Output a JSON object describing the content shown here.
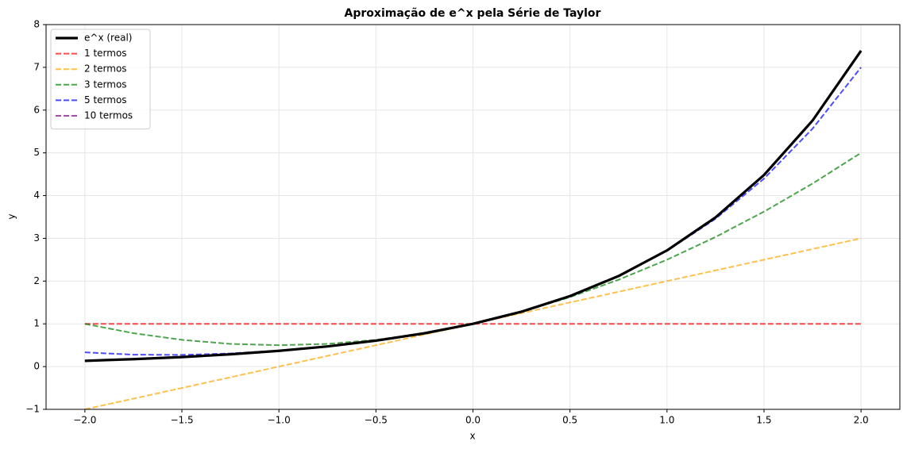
{
  "chart_data": {
    "type": "line",
    "title": "Aproximação de e^x pela Série de Taylor",
    "xlabel": "x",
    "ylabel": "y",
    "x": [
      -2,
      -1.75,
      -1.5,
      -1.25,
      -1,
      -0.75,
      -0.5,
      -0.25,
      0,
      0.25,
      0.5,
      0.75,
      1,
      1.25,
      1.5,
      1.75,
      2
    ],
    "series": [
      {
        "name": "e^x (real)",
        "color": "#000000",
        "dashed": false,
        "values": [
          0.135,
          0.174,
          0.223,
          0.287,
          0.368,
          0.472,
          0.607,
          0.779,
          1,
          1.284,
          1.649,
          2.117,
          2.718,
          3.49,
          4.482,
          5.755,
          7.389
        ]
      },
      {
        "name": "1 termos",
        "color": "#ff0000",
        "dashed": true,
        "values": [
          1,
          1,
          1,
          1,
          1,
          1,
          1,
          1,
          1,
          1,
          1,
          1,
          1,
          1,
          1,
          1,
          1
        ]
      },
      {
        "name": "2 termos",
        "color": "#ffa500",
        "dashed": true,
        "values": [
          -1,
          -0.75,
          -0.5,
          -0.25,
          0,
          0.25,
          0.5,
          0.75,
          1,
          1.25,
          1.5,
          1.75,
          2,
          2.25,
          2.5,
          2.75,
          3
        ]
      },
      {
        "name": "3 termos",
        "color": "#008000",
        "dashed": true,
        "values": [
          1,
          0.781,
          0.625,
          0.531,
          0.5,
          0.531,
          0.625,
          0.781,
          1,
          1.281,
          1.625,
          2.031,
          2.5,
          3.031,
          3.625,
          4.281,
          5
        ]
      },
      {
        "name": "5 termos",
        "color": "#0000ff",
        "dashed": true,
        "values": [
          0.333,
          0.279,
          0.273,
          0.307,
          0.375,
          0.474,
          0.607,
          0.779,
          1,
          1.284,
          1.648,
          2.115,
          2.708,
          3.458,
          4.398,
          5.565,
          7
        ]
      },
      {
        "name": "10 termos",
        "color": "#800080",
        "dashed": true,
        "values": [
          0.135,
          0.174,
          0.223,
          0.287,
          0.368,
          0.472,
          0.607,
          0.779,
          1,
          1.284,
          1.649,
          2.117,
          2.718,
          3.49,
          4.482,
          5.755,
          7.389
        ]
      }
    ],
    "xlim": [
      -2.2,
      2.2
    ],
    "xticks": [
      {
        "value": -2,
        "label": "−2.0"
      },
      {
        "value": -1.5,
        "label": "−1.5"
      },
      {
        "value": -1,
        "label": "−1.0"
      },
      {
        "value": -0.5,
        "label": "−0.5"
      },
      {
        "value": 0,
        "label": "0.0"
      },
      {
        "value": 0.5,
        "label": "0.5"
      },
      {
        "value": 1,
        "label": "1.0"
      },
      {
        "value": 1.5,
        "label": "1.5"
      },
      {
        "value": 2,
        "label": "2.0"
      }
    ],
    "ylim": [
      -1,
      8
    ],
    "yticks": [
      {
        "value": -1,
        "label": "−1"
      },
      0,
      1,
      2,
      3,
      4,
      5,
      6,
      7,
      8
    ],
    "grid": true,
    "legend": "upper left"
  }
}
